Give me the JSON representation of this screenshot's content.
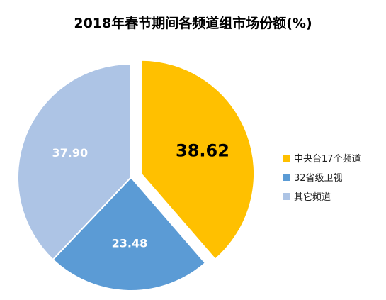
{
  "chart_data": {
    "type": "pie",
    "title": "2018年春节期间各频道组市场份额(%)",
    "slices": [
      {
        "label": "中央台17个频道",
        "value": 38.62,
        "display": "38.62",
        "color": "#ffc000",
        "label_color": "#000000",
        "exploded": true
      },
      {
        "label": "32省级卫视",
        "value": 23.48,
        "display": "23.48",
        "color": "#5b9bd5",
        "label_color": "#ffffff",
        "exploded": false
      },
      {
        "label": "其它频道",
        "value": 37.9,
        "display": "37.90",
        "color": "#adc4e5",
        "label_color": "#ffffff",
        "exploded": false
      }
    ],
    "legend_position": "right"
  }
}
